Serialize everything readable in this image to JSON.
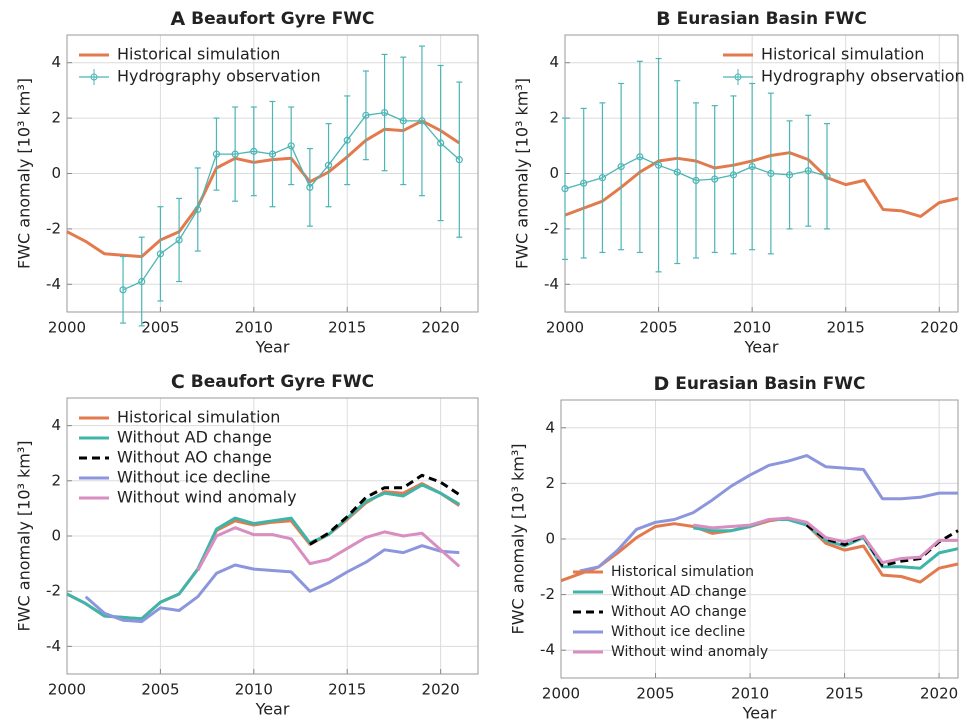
{
  "chart_data": [
    {
      "type": "line",
      "panel": "A",
      "title": "Beaufort Gyre FWC",
      "xlabel": "Year",
      "ylabel": "FWC anomaly [10³ km³]",
      "x": [
        2000,
        2001,
        2002,
        2003,
        2004,
        2005,
        2006,
        2007,
        2008,
        2009,
        2010,
        2011,
        2012,
        2013,
        2014,
        2015,
        2016,
        2017,
        2018,
        2019,
        2020,
        2021
      ],
      "xlim": [
        2000,
        2022
      ],
      "xticks": [
        2000,
        2005,
        2010,
        2015,
        2020
      ],
      "ylim": [
        -5,
        5
      ],
      "yticks": [
        -4,
        -2,
        0,
        2,
        4
      ],
      "grid": true,
      "legend": "upper left",
      "series": [
        {
          "name": "Historical simulation",
          "color": "#e37a4d",
          "values": [
            -2.1,
            -2.45,
            -2.9,
            -2.95,
            -3.0,
            -2.4,
            -2.1,
            -1.2,
            0.2,
            0.55,
            0.4,
            0.5,
            0.55,
            -0.3,
            0.05,
            0.6,
            1.2,
            1.6,
            1.55,
            1.9,
            1.55,
            1.1
          ]
        },
        {
          "name": "Hydrography observation",
          "color": "#4cb5b5",
          "marker": "circle",
          "values": [
            null,
            null,
            null,
            -4.2,
            -3.9,
            -2.9,
            -2.4,
            -1.3,
            0.7,
            0.7,
            0.8,
            0.7,
            1.0,
            -0.5,
            0.3,
            1.2,
            2.1,
            2.2,
            1.9,
            1.9,
            1.1,
            0.5
          ],
          "errors": [
            null,
            null,
            null,
            1.2,
            1.6,
            1.7,
            1.5,
            1.5,
            1.3,
            1.7,
            1.6,
            1.9,
            1.4,
            1.4,
            1.5,
            1.6,
            1.6,
            2.1,
            2.3,
            2.7,
            2.8,
            2.8
          ]
        }
      ]
    },
    {
      "type": "line",
      "panel": "B",
      "title": "Eurasian Basin FWC",
      "xlabel": "Year",
      "ylabel": "FWC anomaly [10³ km³]",
      "x": [
        2000,
        2001,
        2002,
        2003,
        2004,
        2005,
        2006,
        2007,
        2008,
        2009,
        2010,
        2011,
        2012,
        2013,
        2014,
        2015,
        2016,
        2017,
        2018,
        2019,
        2020,
        2021
      ],
      "xlim": [
        2000,
        2021
      ],
      "xticks": [
        2000,
        2005,
        2010,
        2015,
        2020
      ],
      "ylim": [
        -5,
        5
      ],
      "yticks": [
        -4,
        -2,
        0,
        2,
        4
      ],
      "grid": true,
      "legend": "upper right",
      "series": [
        {
          "name": "Historical simulation",
          "color": "#e37a4d",
          "values": [
            -1.5,
            -1.25,
            -1.0,
            -0.5,
            0.05,
            0.45,
            0.55,
            0.45,
            0.2,
            0.3,
            0.45,
            0.65,
            0.75,
            0.5,
            -0.15,
            -0.4,
            -0.25,
            -1.3,
            -1.35,
            -1.55,
            -1.05,
            -0.9
          ]
        },
        {
          "name": "Hydrography observation",
          "color": "#4cb5b5",
          "marker": "circle",
          "values": [
            -0.55,
            -0.35,
            -0.15,
            0.25,
            0.6,
            0.3,
            0.05,
            -0.25,
            -0.2,
            -0.05,
            0.25,
            0.0,
            -0.05,
            0.1,
            -0.1,
            null,
            null,
            null,
            null,
            null,
            null,
            null
          ],
          "errors": [
            2.55,
            2.7,
            2.7,
            3.0,
            3.45,
            3.85,
            3.3,
            2.8,
            2.65,
            2.85,
            3.0,
            2.9,
            1.95,
            2.0,
            1.9,
            null,
            null,
            null,
            null,
            null,
            null,
            null
          ]
        }
      ]
    },
    {
      "type": "line",
      "panel": "C",
      "title": "Beaufort Gyre FWC",
      "xlabel": "Year",
      "ylabel": "FWC anomaly [10³ km³]",
      "x": [
        2000,
        2001,
        2002,
        2003,
        2004,
        2005,
        2006,
        2007,
        2008,
        2009,
        2010,
        2011,
        2012,
        2013,
        2014,
        2015,
        2016,
        2017,
        2018,
        2019,
        2020,
        2021
      ],
      "xlim": [
        2000,
        2022
      ],
      "xticks": [
        2000,
        2005,
        2010,
        2015,
        2020
      ],
      "ylim": [
        -5,
        5
      ],
      "yticks": [
        -4,
        -2,
        0,
        2,
        4
      ],
      "grid": true,
      "legend": "upper left",
      "series": [
        {
          "name": "Historical simulation",
          "color": "#e37a4d",
          "values": [
            -2.1,
            -2.45,
            -2.9,
            -2.95,
            -3.0,
            -2.4,
            -2.1,
            -1.2,
            0.2,
            0.55,
            0.4,
            0.5,
            0.55,
            -0.3,
            0.05,
            0.6,
            1.2,
            1.6,
            1.55,
            1.9,
            1.55,
            1.1
          ]
        },
        {
          "name": "Without AD change",
          "color": "#3fb5aa",
          "values": [
            -2.1,
            -2.45,
            -2.9,
            -2.95,
            -3.0,
            -2.4,
            -2.1,
            -1.2,
            0.25,
            0.65,
            0.45,
            0.55,
            0.65,
            -0.25,
            0.05,
            0.65,
            1.25,
            1.55,
            1.45,
            1.85,
            1.55,
            1.15
          ]
        },
        {
          "name": "Without AO change",
          "color": "#000000",
          "dash": true,
          "values": [
            null,
            null,
            null,
            null,
            null,
            null,
            null,
            null,
            null,
            null,
            null,
            null,
            null,
            -0.3,
            0.1,
            0.7,
            1.4,
            1.75,
            1.75,
            2.2,
            1.95,
            1.5
          ]
        },
        {
          "name": "Without ice decline",
          "color": "#8c96dc",
          "values": [
            null,
            -2.2,
            -2.8,
            -3.05,
            -3.1,
            -2.6,
            -2.7,
            -2.2,
            -1.35,
            -1.05,
            -1.2,
            -1.25,
            -1.3,
            -2.0,
            -1.7,
            -1.3,
            -0.95,
            -0.5,
            -0.6,
            -0.35,
            -0.55,
            -0.6
          ]
        },
        {
          "name": "Without wind anomaly",
          "color": "#d88ec0",
          "values": [
            null,
            null,
            null,
            null,
            null,
            null,
            null,
            -1.25,
            0.0,
            0.3,
            0.05,
            0.05,
            -0.1,
            -1.0,
            -0.85,
            -0.45,
            -0.05,
            0.15,
            0.0,
            0.1,
            -0.5,
            -1.1
          ]
        }
      ]
    },
    {
      "type": "line",
      "panel": "D",
      "title": "Eurasian Basin FWC",
      "xlabel": "Year",
      "ylabel": "FWC anomaly [10³ km³]",
      "x": [
        2000,
        2001,
        2002,
        2003,
        2004,
        2005,
        2006,
        2007,
        2008,
        2009,
        2010,
        2011,
        2012,
        2013,
        2014,
        2015,
        2016,
        2017,
        2018,
        2019,
        2020,
        2021
      ],
      "xlim": [
        2000,
        2021
      ],
      "xticks": [
        2000,
        2005,
        2010,
        2015,
        2020
      ],
      "ylim": [
        -5,
        5
      ],
      "yticks": [
        -4,
        -2,
        0,
        2,
        4
      ],
      "grid": true,
      "legend": "lower left",
      "series": [
        {
          "name": "Historical simulation",
          "color": "#e37a4d",
          "values": [
            -1.5,
            -1.25,
            -1.0,
            -0.5,
            0.05,
            0.45,
            0.55,
            0.45,
            0.2,
            0.3,
            0.45,
            0.65,
            0.75,
            0.5,
            -0.15,
            -0.4,
            -0.25,
            -1.3,
            -1.35,
            -1.55,
            -1.05,
            -0.9
          ]
        },
        {
          "name": "Without AD change",
          "color": "#3fb5aa",
          "values": [
            null,
            null,
            null,
            null,
            null,
            null,
            null,
            0.4,
            0.3,
            0.3,
            0.45,
            0.7,
            0.7,
            0.5,
            -0.05,
            -0.25,
            0.05,
            -1.0,
            -1.0,
            -1.05,
            -0.5,
            -0.35
          ]
        },
        {
          "name": "Without AO change",
          "color": "#000000",
          "dash": true,
          "values": [
            null,
            null,
            null,
            null,
            null,
            null,
            null,
            null,
            null,
            null,
            null,
            null,
            null,
            0.5,
            0.0,
            -0.2,
            0.1,
            -0.95,
            -0.8,
            -0.7,
            -0.1,
            0.3
          ]
        },
        {
          "name": "Without ice decline",
          "color": "#8c96dc",
          "values": [
            null,
            -1.15,
            -1.0,
            -0.4,
            0.35,
            0.6,
            0.7,
            0.95,
            1.4,
            1.9,
            2.3,
            2.65,
            2.8,
            3.0,
            2.6,
            2.55,
            2.5,
            1.45,
            1.45,
            1.5,
            1.65,
            1.65
          ]
        },
        {
          "name": "Without wind anomaly",
          "color": "#d88ec0",
          "values": [
            null,
            null,
            null,
            null,
            null,
            null,
            null,
            0.5,
            0.4,
            0.45,
            0.5,
            0.7,
            0.75,
            0.6,
            0.05,
            -0.1,
            0.1,
            -0.85,
            -0.7,
            -0.65,
            -0.05,
            -0.05
          ]
        }
      ]
    }
  ]
}
